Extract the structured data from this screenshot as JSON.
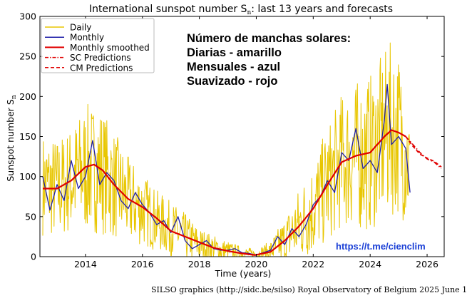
{
  "chart_data": {
    "type": "line",
    "title": "International sunspot number S",
    "title_subscript": "n",
    "title_suffix": ": last 13 years and forecasts",
    "xlabel": "Time (years)",
    "ylabel": "Sunspot number S",
    "ylabel_subscript": "n",
    "xlim": [
      2012.4,
      2026.6
    ],
    "ylim": [
      0,
      300
    ],
    "x_ticks": [
      2014,
      2016,
      2018,
      2020,
      2022,
      2024,
      2026
    ],
    "y_ticks": [
      0,
      50,
      100,
      150,
      200,
      250,
      300
    ],
    "legend_position": "top-left",
    "legend": [
      {
        "label": "Daily",
        "color": "#e8c600",
        "style": "solid"
      },
      {
        "label": "Monthly",
        "color": "#1f1fa8",
        "style": "solid"
      },
      {
        "label": "Monthly smoothed",
        "color": "#e00000",
        "style": "solid"
      },
      {
        "label": "SC Predictions",
        "color": "#e00000",
        "style": "dashdot"
      },
      {
        "label": "CM Predictions",
        "color": "#e00000",
        "style": "dashed"
      }
    ],
    "annotation_lines": [
      "Número de manchas solares:",
      "Diarias - amarillo",
      "Mensuales - azul",
      "Suavizado - rojo"
    ],
    "link_text": "https://t.me/cienclim",
    "series": [
      {
        "name": "Monthly",
        "color": "#1f1fa8",
        "x": [
          2012.5,
          2012.75,
          2013.0,
          2013.25,
          2013.5,
          2013.75,
          2014.0,
          2014.25,
          2014.5,
          2014.75,
          2015.0,
          2015.25,
          2015.5,
          2015.75,
          2016.0,
          2016.25,
          2016.5,
          2016.75,
          2017.0,
          2017.25,
          2017.5,
          2017.75,
          2018.0,
          2018.25,
          2018.5,
          2018.75,
          2019.0,
          2019.25,
          2019.5,
          2019.75,
          2020.0,
          2020.25,
          2020.5,
          2020.75,
          2021.0,
          2021.25,
          2021.5,
          2021.75,
          2022.0,
          2022.25,
          2022.5,
          2022.75,
          2023.0,
          2023.25,
          2023.5,
          2023.75,
          2024.0,
          2024.25,
          2024.5,
          2024.6,
          2024.75,
          2025.0,
          2025.25,
          2025.4
        ],
        "y": [
          100,
          58,
          90,
          70,
          120,
          85,
          100,
          145,
          90,
          105,
          95,
          70,
          60,
          80,
          65,
          55,
          40,
          45,
          30,
          50,
          20,
          10,
          15,
          20,
          10,
          8,
          8,
          10,
          5,
          4,
          2,
          5,
          8,
          25,
          15,
          35,
          25,
          40,
          65,
          75,
          95,
          80,
          130,
          120,
          160,
          110,
          120,
          105,
          170,
          215,
          140,
          150,
          135,
          80
        ]
      },
      {
        "name": "Monthly smoothed",
        "color": "#e00000",
        "x": [
          2012.5,
          2013.0,
          2013.5,
          2014.0,
          2014.3,
          2014.6,
          2015.0,
          2015.5,
          2016.0,
          2016.5,
          2017.0,
          2017.5,
          2018.0,
          2018.5,
          2019.0,
          2019.5,
          2019.95,
          2020.5,
          2021.0,
          2021.5,
          2022.0,
          2022.5,
          2023.0,
          2023.5,
          2024.0,
          2024.5,
          2024.75,
          2025.0,
          2025.25
        ],
        "y": [
          85,
          85,
          95,
          112,
          115,
          108,
          90,
          72,
          62,
          48,
          32,
          25,
          18,
          11,
          7,
          4,
          2,
          6,
          20,
          38,
          60,
          90,
          118,
          126,
          130,
          150,
          158,
          155,
          150
        ]
      },
      {
        "name": "SC Predictions",
        "color": "#e00000",
        "x": [
          2025.25,
          2025.5,
          2025.75,
          2026.0,
          2026.25,
          2026.5
        ],
        "y": [
          150,
          140,
          130,
          122,
          118,
          110
        ]
      },
      {
        "name": "CM Predictions",
        "color": "#e00000",
        "x": [
          2025.25,
          2025.5,
          2025.75,
          2026.0,
          2026.25,
          2026.5
        ],
        "y": [
          150,
          138,
          128,
          123,
          119,
          112
        ]
      },
      {
        "name": "Daily",
        "color": "#e8c600",
        "x": [
          2012.5,
          2013.0,
          2013.5,
          2014.0,
          2014.5,
          2015.0,
          2015.5,
          2016.0,
          2016.5,
          2017.0,
          2017.5,
          2018.0,
          2018.5,
          2019.0,
          2019.5,
          2020.0,
          2020.5,
          2021.0,
          2021.5,
          2022.0,
          2022.5,
          2023.0,
          2023.5,
          2024.0,
          2024.5,
          2024.75,
          2025.0,
          2025.4
        ],
        "y": [
          90,
          85,
          95,
          110,
          110,
          90,
          70,
          60,
          45,
          35,
          25,
          15,
          10,
          7,
          4,
          3,
          7,
          20,
          40,
          60,
          90,
          120,
          125,
          130,
          150,
          160,
          155,
          110
        ],
        "spread": [
          75,
          75,
          80,
          95,
          95,
          80,
          65,
          55,
          45,
          40,
          35,
          25,
          20,
          15,
          10,
          8,
          15,
          35,
          55,
          70,
          85,
          100,
          110,
          115,
          125,
          130,
          120,
          90
        ]
      }
    ]
  },
  "footer": {
    "credit": "SILSO graphics (http://sidc.be/silso)  Royal Observatory of Belgium  2025 June 1"
  }
}
